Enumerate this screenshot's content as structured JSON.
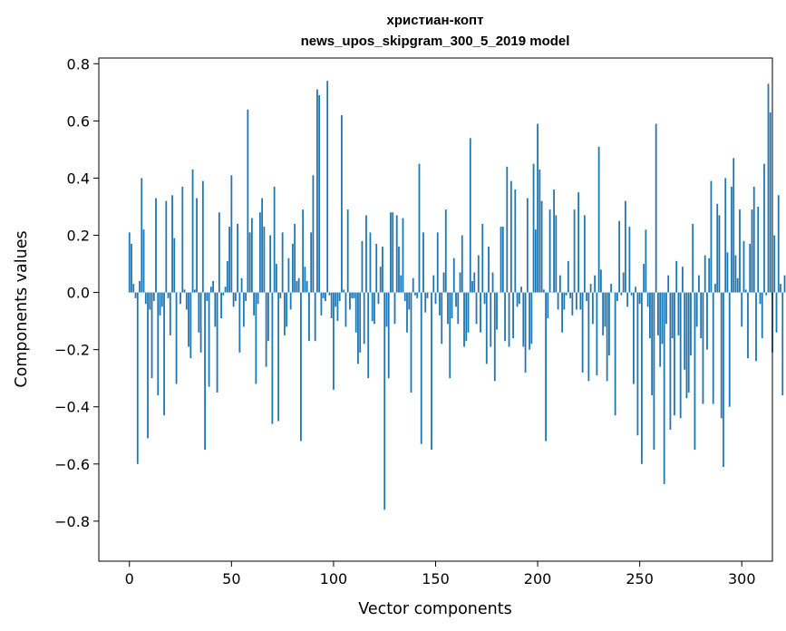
{
  "chart_data": {
    "type": "bar",
    "title": "христиан-копт",
    "subtitle": "news_upos_skipgram_300_5_2019 model",
    "xlabel": "Vector components",
    "ylabel": "Components values",
    "xlim": [
      -15,
      315
    ],
    "ylim": [
      -0.94,
      0.82
    ],
    "x_ticks": [
      0,
      50,
      100,
      150,
      200,
      250,
      300
    ],
    "x_tick_labels": [
      "0",
      "50",
      "100",
      "150",
      "200",
      "250",
      "300"
    ],
    "y_ticks": [
      -0.8,
      -0.6,
      -0.4,
      -0.2,
      0.0,
      0.2,
      0.4,
      0.6,
      0.8
    ],
    "y_tick_labels": [
      "−0.8",
      "−0.6",
      "−0.4",
      "−0.2",
      "0.0",
      "0.2",
      "0.4",
      "0.6",
      "0.8"
    ],
    "grid": false,
    "bar_color": "#1f77b4",
    "values": [
      0.21,
      0.17,
      0.03,
      -0.02,
      -0.6,
      0.04,
      0.4,
      0.22,
      -0.04,
      -0.51,
      -0.06,
      -0.3,
      -0.03,
      0.33,
      -0.36,
      -0.08,
      -0.05,
      -0.43,
      0.32,
      -0.02,
      -0.15,
      0.34,
      0.19,
      -0.32,
      0.0,
      -0.04,
      0.37,
      0.01,
      -0.06,
      -0.19,
      -0.23,
      0.43,
      0.01,
      0.33,
      -0.14,
      -0.21,
      0.39,
      -0.55,
      -0.03,
      -0.33,
      0.02,
      0.04,
      -0.12,
      -0.35,
      0.28,
      -0.09,
      -0.01,
      0.02,
      0.11,
      0.23,
      0.41,
      -0.05,
      -0.03,
      0.24,
      -0.21,
      0.05,
      -0.12,
      -0.03,
      0.64,
      0.21,
      0.26,
      -0.08,
      -0.32,
      -0.04,
      0.28,
      0.33,
      0.23,
      -0.26,
      -0.17,
      0.2,
      -0.46,
      0.37,
      0.1,
      -0.45,
      -0.02,
      0.21,
      -0.15,
      -0.12,
      0.12,
      -0.06,
      0.17,
      0.24,
      0.04,
      0.05,
      -0.52,
      0.29,
      0.09,
      0.04,
      -0.17,
      0.21,
      0.41,
      -0.17,
      0.71,
      0.69,
      -0.08,
      -0.02,
      -0.03,
      0.74,
      -0.01,
      -0.09,
      -0.34,
      -0.05,
      -0.1,
      -0.03,
      0.62,
      0.01,
      -0.12,
      0.29,
      -0.06,
      -0.02,
      -0.02,
      -0.14,
      -0.25,
      -0.21,
      0.18,
      -0.18,
      0.27,
      -0.3,
      0.21,
      -0.1,
      -0.11,
      0.17,
      -0.04,
      0.09,
      0.16,
      -0.76,
      -0.12,
      -0.3,
      0.28,
      0.28,
      -0.11,
      0.27,
      0.16,
      0.06,
      0.26,
      -0.03,
      -0.14,
      -0.06,
      -0.35,
      0.05,
      -0.01,
      -0.02,
      0.45,
      -0.53,
      0.21,
      -0.07,
      -0.02,
      0.0,
      -0.55,
      0.06,
      -0.04,
      0.21,
      -0.08,
      -0.18,
      0.07,
      0.29,
      -0.11,
      -0.3,
      -0.09,
      0.12,
      -0.05,
      -0.11,
      0.07,
      0.2,
      -0.19,
      -0.17,
      -0.14,
      0.54,
      0.04,
      0.07,
      -0.11,
      0.13,
      -0.14,
      0.24,
      -0.04,
      -0.25,
      0.16,
      -0.19,
      0.07,
      -0.31,
      -0.13,
      0.0,
      0.23,
      0.23,
      -0.17,
      0.44,
      -0.19,
      0.39,
      -0.16,
      0.36,
      -0.05,
      -0.04,
      0.02,
      -0.19,
      -0.28,
      0.33,
      -0.2,
      -0.18,
      0.45,
      0.22,
      0.59,
      0.43,
      0.32,
      0.01,
      -0.52,
      -0.09,
      0.29,
      0.0,
      0.36,
      0.27,
      -0.06,
      0.06,
      -0.14,
      -0.06,
      -0.01,
      0.11,
      -0.02,
      -0.08,
      0.29,
      -0.06,
      0.35,
      -0.06,
      -0.28,
      0.27,
      -0.03,
      -0.31,
      0.03,
      -0.11,
      0.06,
      -0.29,
      0.51,
      0.08,
      -0.15,
      -0.12,
      -0.31,
      -0.22,
      0.03,
      0.0,
      -0.43,
      -0.03,
      0.25,
      -0.01,
      0.07,
      0.32,
      -0.05,
      0.23,
      -0.01,
      -0.32,
      0.02,
      -0.5,
      -0.04,
      -0.6,
      0.1,
      0.22,
      -0.05,
      -0.16,
      -0.36,
      -0.55,
      0.59,
      -0.15,
      -0.26,
      -0.18,
      -0.67,
      -0.11,
      0.06,
      -0.48,
      -0.16,
      -0.43,
      0.11,
      -0.15,
      -0.44,
      0.09,
      -0.27,
      -0.37,
      -0.35,
      -0.22,
      0.24,
      -0.55,
      -0.12,
      0.06,
      -0.16,
      -0.39,
      0.13,
      -0.2,
      0.12,
      0.39,
      -0.39,
      0.03,
      0.31,
      0.27,
      -0.44,
      -0.61,
      0.4,
      0.14,
      -0.4,
      0.37,
      0.47,
      0.13,
      0.05,
      0.29,
      -0.12,
      0.18,
      0.01,
      -0.23,
      0.17,
      0.29,
      0.37,
      -0.24,
      0.3,
      -0.04,
      -0.16,
      0.45,
      -0.01,
      0.73,
      0.63,
      -0.21,
      0.2,
      -0.14,
      0.34,
      0.03,
      -0.36,
      0.06
    ]
  }
}
